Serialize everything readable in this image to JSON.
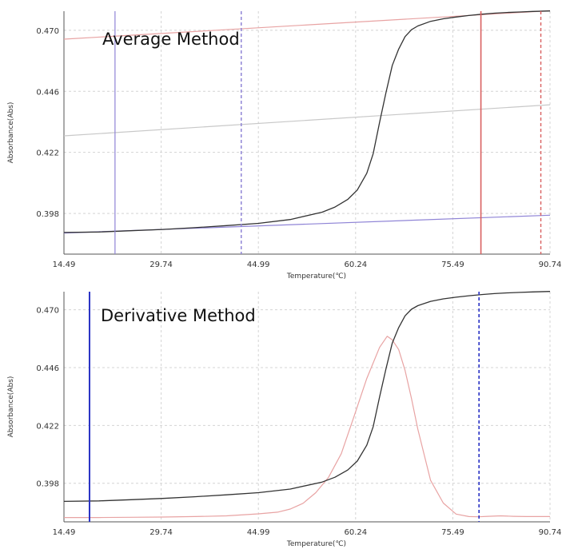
{
  "colors": {
    "curve": "#333333",
    "pink": "#e8a3a3",
    "red": "#d95f5f",
    "lavender": "#8f84d6",
    "blue": "#2a33c4",
    "gray_line": "#c8c8c8",
    "grid": "#d4d4d4"
  },
  "chart_data": [
    {
      "type": "line",
      "title": "Average Method",
      "xlabel": "Temperature(℃)",
      "ylabel": "Absorbance(Abs)",
      "xlim": [
        14.49,
        90.74
      ],
      "ylim": [
        0.382,
        0.4775
      ],
      "x_ticks": [
        "14.49",
        "29.74",
        "44.99",
        "60.24",
        "75.49",
        "90.74"
      ],
      "y_ticks": [
        "0.398",
        "0.422",
        "0.446",
        "0.470"
      ],
      "series": [
        {
          "name": "absorbance curve",
          "style": "black",
          "x": [
            14.49,
            20,
            25,
            30,
            35,
            40,
            45,
            50,
            55,
            57,
            59,
            60.5,
            62,
            63,
            64,
            65,
            66,
            67,
            68,
            69,
            70,
            72,
            74,
            76,
            78,
            80,
            82,
            84,
            86,
            88,
            90.74
          ],
          "y": [
            0.3905,
            0.3907,
            0.3912,
            0.3917,
            0.3924,
            0.3932,
            0.3941,
            0.3956,
            0.3985,
            0.4005,
            0.4035,
            0.4072,
            0.4138,
            0.4215,
            0.4338,
            0.4455,
            0.4562,
            0.4626,
            0.4675,
            0.4702,
            0.4717,
            0.4735,
            0.4745,
            0.4752,
            0.4758,
            0.4763,
            0.4767,
            0.477,
            0.4772,
            0.4774,
            0.4776
          ]
        },
        {
          "name": "upper baseline",
          "style": "pink",
          "x": [
            14.49,
            90.74
          ],
          "y": [
            0.4665,
            0.4777
          ]
        },
        {
          "name": "middle line",
          "style": "gray",
          "x": [
            14.49,
            90.74
          ],
          "y": [
            0.4285,
            0.4407
          ]
        },
        {
          "name": "lower baseline",
          "style": "lavender",
          "x": [
            14.49,
            90.74
          ],
          "y": [
            0.3903,
            0.3973
          ]
        }
      ],
      "vlines": [
        {
          "x": 22.5,
          "style": "lavender"
        },
        {
          "x": 42.3,
          "style": "lavender-dashed"
        },
        {
          "x": 79.9,
          "style": "red"
        },
        {
          "x": 89.3,
          "style": "red-dashed"
        }
      ]
    },
    {
      "type": "line",
      "title": "Derivative Method",
      "xlabel": "Temperature(℃)",
      "ylabel": "Absorbance(Abs)",
      "xlim": [
        14.49,
        90.74
      ],
      "ylim": [
        0.382,
        0.4775
      ],
      "x_ticks": [
        "14.49",
        "29.74",
        "44.99",
        "60.24",
        "75.49",
        "90.74"
      ],
      "y_ticks": [
        "0.398",
        "0.422",
        "0.446",
        "0.470"
      ],
      "series": [
        {
          "name": "absorbance curve",
          "style": "black",
          "x": [
            14.49,
            20,
            25,
            30,
            35,
            40,
            45,
            50,
            55,
            57,
            59,
            60.5,
            62,
            63,
            64,
            65,
            66,
            67,
            68,
            69,
            70,
            72,
            74,
            76,
            78,
            80,
            82,
            84,
            86,
            88,
            90.74
          ],
          "y": [
            0.3905,
            0.3907,
            0.3912,
            0.3917,
            0.3924,
            0.3932,
            0.3941,
            0.3956,
            0.3985,
            0.4005,
            0.4035,
            0.4072,
            0.4138,
            0.4215,
            0.4338,
            0.4455,
            0.4562,
            0.4626,
            0.4675,
            0.4702,
            0.4717,
            0.4735,
            0.4745,
            0.4752,
            0.4758,
            0.4763,
            0.4767,
            0.477,
            0.4772,
            0.4774,
            0.4776
          ]
        },
        {
          "name": "derivative peak",
          "style": "pink",
          "x": [
            14.49,
            20,
            25,
            30,
            35,
            40,
            45,
            48,
            50,
            52,
            54,
            56,
            58,
            60,
            62,
            64,
            65.2,
            66,
            67,
            68,
            69,
            70,
            72,
            74,
            76,
            78,
            79.5,
            81,
            83,
            85,
            87,
            90.74
          ],
          "y": [
            0.3838,
            0.3838,
            0.3839,
            0.384,
            0.3842,
            0.3845,
            0.3853,
            0.386,
            0.3873,
            0.3897,
            0.3941,
            0.4005,
            0.4103,
            0.4258,
            0.4415,
            0.4544,
            0.459,
            0.4575,
            0.4535,
            0.4448,
            0.4332,
            0.4205,
            0.3992,
            0.3898,
            0.3852,
            0.3842,
            0.3841,
            0.3843,
            0.3845,
            0.3843,
            0.3842,
            0.3842
          ]
        }
      ],
      "vlines": [
        {
          "x": 18.5,
          "style": "blue"
        },
        {
          "x": 79.6,
          "style": "blue-dashed"
        }
      ]
    }
  ]
}
